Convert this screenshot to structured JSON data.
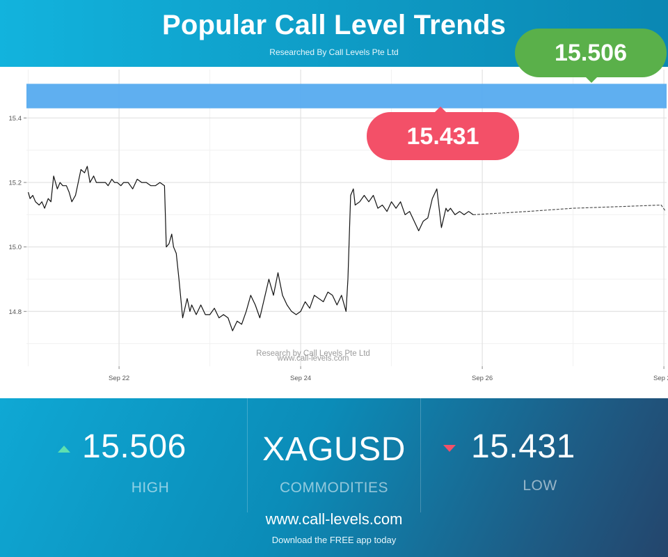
{
  "header": {
    "title": "Popular Call Level Trends",
    "subtitle": "Researched By Call Levels Pte Ltd"
  },
  "bubbles": {
    "high": "15.506",
    "low": "15.431"
  },
  "chart_data": {
    "type": "line",
    "x_tick_labels": [
      "Sep 22",
      "Sep 24",
      "Sep 26",
      "Sep 28"
    ],
    "x_ticks": [
      22,
      24,
      26,
      28
    ],
    "y_tick_labels": [
      "14.8",
      "15.0",
      "15.2",
      "15.4"
    ],
    "y_ticks": [
      14.8,
      15.0,
      15.2,
      15.4
    ],
    "xlim": [
      20.98,
      28.03
    ],
    "ylim": [
      14.63,
      15.55
    ],
    "band": {
      "from": 15.43,
      "to": 15.506,
      "color": "#5aacf0"
    },
    "watermark": [
      "Research by Call Levels Pte Ltd",
      "www.call-levels.com"
    ],
    "grid": true,
    "series": [
      {
        "style": "solid",
        "x": [
          21.0,
          21.02,
          21.05,
          21.08,
          21.12,
          21.15,
          21.18,
          21.22,
          21.25,
          21.28,
          21.32,
          21.35,
          21.38,
          21.42,
          21.45,
          21.48,
          21.52,
          21.55,
          21.58,
          21.62,
          21.65,
          21.68,
          21.72,
          21.75,
          21.78,
          21.82,
          21.85,
          21.88,
          21.92,
          21.95,
          21.98,
          22.02,
          22.05,
          22.1,
          22.15,
          22.2,
          22.25,
          22.3,
          22.35,
          22.4,
          22.45,
          22.5,
          22.52,
          22.55,
          22.58,
          22.6,
          22.63,
          22.66,
          22.7,
          22.75,
          22.78,
          22.8,
          22.85,
          22.9,
          22.95,
          23.0,
          23.05,
          23.1,
          23.15,
          23.2,
          23.25,
          23.3,
          23.35,
          23.4,
          23.45,
          23.5,
          23.55,
          23.6,
          23.65,
          23.7,
          23.75,
          23.8,
          23.85,
          23.9,
          23.95,
          24.0,
          24.05,
          24.1,
          24.15,
          24.2,
          24.25,
          24.3,
          24.35,
          24.4,
          24.45,
          24.5,
          24.52,
          24.55,
          24.58,
          24.6,
          24.65,
          24.7,
          24.75,
          24.8,
          24.85,
          24.9,
          24.95,
          25.0,
          25.05,
          25.1,
          25.15,
          25.2,
          25.25,
          25.3,
          25.35,
          25.4,
          25.45,
          25.5,
          25.55,
          25.6,
          25.62,
          25.65,
          25.7,
          25.75,
          25.8,
          25.85,
          25.9
        ],
        "y": [
          15.17,
          15.15,
          15.16,
          15.14,
          15.13,
          15.14,
          15.12,
          15.15,
          15.14,
          15.22,
          15.18,
          15.2,
          15.19,
          15.19,
          15.17,
          15.14,
          15.16,
          15.2,
          15.24,
          15.23,
          15.25,
          15.2,
          15.22,
          15.2,
          15.2,
          15.2,
          15.2,
          15.19,
          15.21,
          15.2,
          15.2,
          15.19,
          15.2,
          15.2,
          15.18,
          15.21,
          15.2,
          15.2,
          15.19,
          15.19,
          15.2,
          15.19,
          15.0,
          15.01,
          15.04,
          15.0,
          14.98,
          14.9,
          14.78,
          14.84,
          14.8,
          14.82,
          14.79,
          14.82,
          14.79,
          14.79,
          14.81,
          14.78,
          14.79,
          14.78,
          14.74,
          14.77,
          14.76,
          14.8,
          14.85,
          14.82,
          14.78,
          14.84,
          14.9,
          14.85,
          14.92,
          14.85,
          14.82,
          14.8,
          14.79,
          14.8,
          14.83,
          14.81,
          14.85,
          14.84,
          14.83,
          14.86,
          14.85,
          14.82,
          14.85,
          14.8,
          14.9,
          15.16,
          15.18,
          15.13,
          15.14,
          15.16,
          15.14,
          15.16,
          15.12,
          15.13,
          15.11,
          15.14,
          15.12,
          15.14,
          15.1,
          15.11,
          15.08,
          15.05,
          15.08,
          15.09,
          15.15,
          15.18,
          15.06,
          15.12,
          15.11,
          15.12,
          15.1,
          15.11,
          15.1,
          15.11,
          15.1
        ]
      },
      {
        "style": "dashed",
        "x": [
          25.9,
          26.5,
          27.0,
          27.5,
          27.97,
          28.02
        ],
        "y": [
          15.1,
          15.11,
          15.12,
          15.125,
          15.13,
          15.11
        ]
      }
    ]
  },
  "stats": {
    "high": {
      "value": "15.506",
      "label": "HIGH",
      "arrow_color": "#5ee0b0"
    },
    "symbol": {
      "value": "XAGUSD",
      "label": "COMMODITIES"
    },
    "low": {
      "value": "15.431",
      "label": "LOW",
      "arrow_color": "#f35068"
    }
  },
  "footer": {
    "site": "www.call-levels.com",
    "tagline": "Download the FREE app today"
  }
}
